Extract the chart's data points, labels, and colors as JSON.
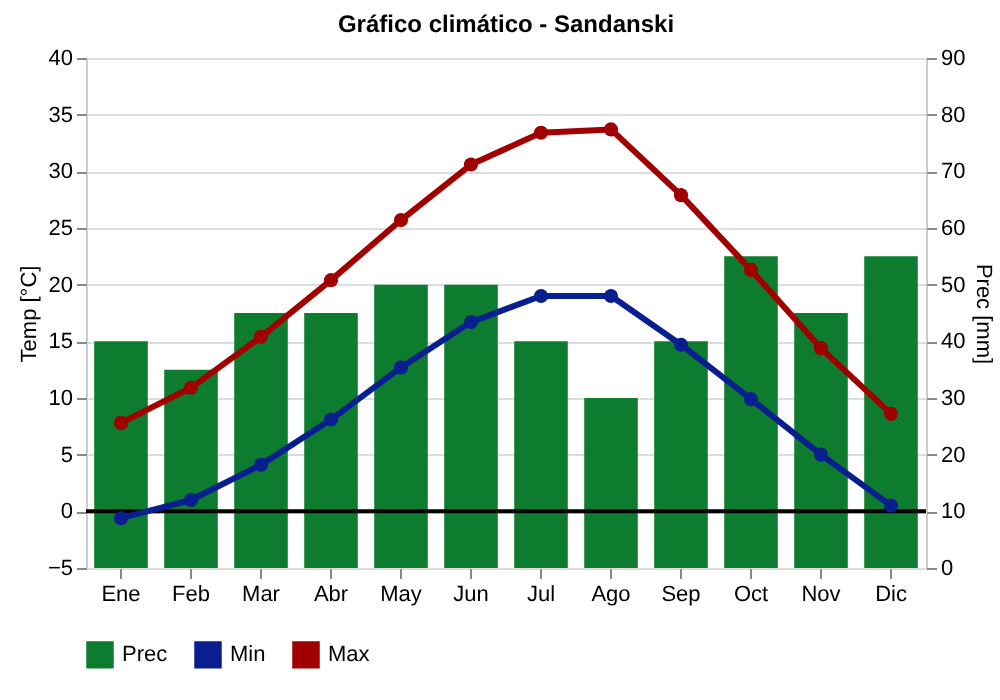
{
  "chart_data": {
    "type": "line",
    "title": "Gráfico climático - Sandanski",
    "ylabel": "Temp [°C]",
    "y2label": "Prec [mm]",
    "categories": [
      "Ene",
      "Feb",
      "Mar",
      "Abr",
      "May",
      "Jun",
      "Jul",
      "Ago",
      "Sep",
      "Oct",
      "Nov",
      "Dic"
    ],
    "series": [
      {
        "name": "Prec",
        "type": "bar",
        "axis": "y2",
        "color": "#0e7c2e",
        "values": [
          40,
          35,
          45,
          45,
          50,
          50,
          40,
          30,
          40,
          55,
          45,
          55
        ]
      },
      {
        "name": "Min",
        "color": "#0a1f8f",
        "values": [
          -0.6,
          1.0,
          4.1,
          8.1,
          12.7,
          16.7,
          19.0,
          19.0,
          14.7,
          9.9,
          5.0,
          0.5
        ]
      },
      {
        "name": "Max",
        "color": "#a00000",
        "values": [
          7.8,
          10.9,
          15.4,
          20.4,
          25.7,
          30.6,
          33.4,
          33.7,
          27.9,
          21.3,
          14.4,
          8.6
        ]
      }
    ],
    "ylim": [
      -5,
      40
    ],
    "yticks": [
      -5,
      0,
      5,
      10,
      15,
      20,
      25,
      30,
      35,
      40
    ],
    "y2lim": [
      0,
      90
    ],
    "y2ticks": [
      0,
      10,
      20,
      30,
      40,
      50,
      60,
      70,
      80,
      90
    ],
    "ref_lines": [
      {
        "axis": "y",
        "value": 0,
        "color": "#000000"
      }
    ],
    "grid": "y",
    "legend": "bottom left",
    "marker": "circle",
    "line_style": "solid"
  }
}
